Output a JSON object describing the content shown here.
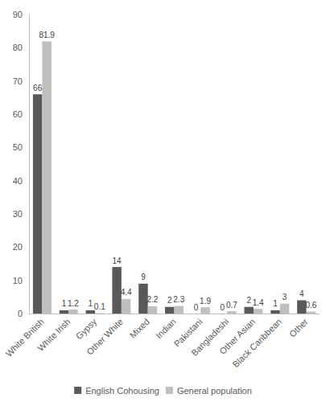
{
  "chart_data": {
    "type": "bar",
    "categories": [
      "White British",
      "White Irish",
      "Gypsy",
      "Other White",
      "Mixed",
      "Indian",
      "Pakistani",
      "Bangladeshi",
      "Other Asian",
      "Black Caribbean",
      "Other"
    ],
    "series": [
      {
        "name": "English Cohousing",
        "color": "#595959",
        "values": [
          66,
          1,
          1,
          14,
          9,
          2,
          0,
          0,
          2,
          1,
          4
        ]
      },
      {
        "name": "General population",
        "color": "#bfbfbf",
        "values": [
          81.9,
          1.2,
          0.1,
          4.4,
          2.2,
          2.3,
          1.9,
          0.7,
          1.4,
          3,
          0.6
        ]
      }
    ],
    "ylim": [
      0,
      90
    ],
    "yticks": [
      0,
      10,
      20,
      30,
      40,
      50,
      60,
      70,
      80,
      90
    ],
    "grid": false,
    "data_labels": true,
    "legend": "bottom"
  }
}
